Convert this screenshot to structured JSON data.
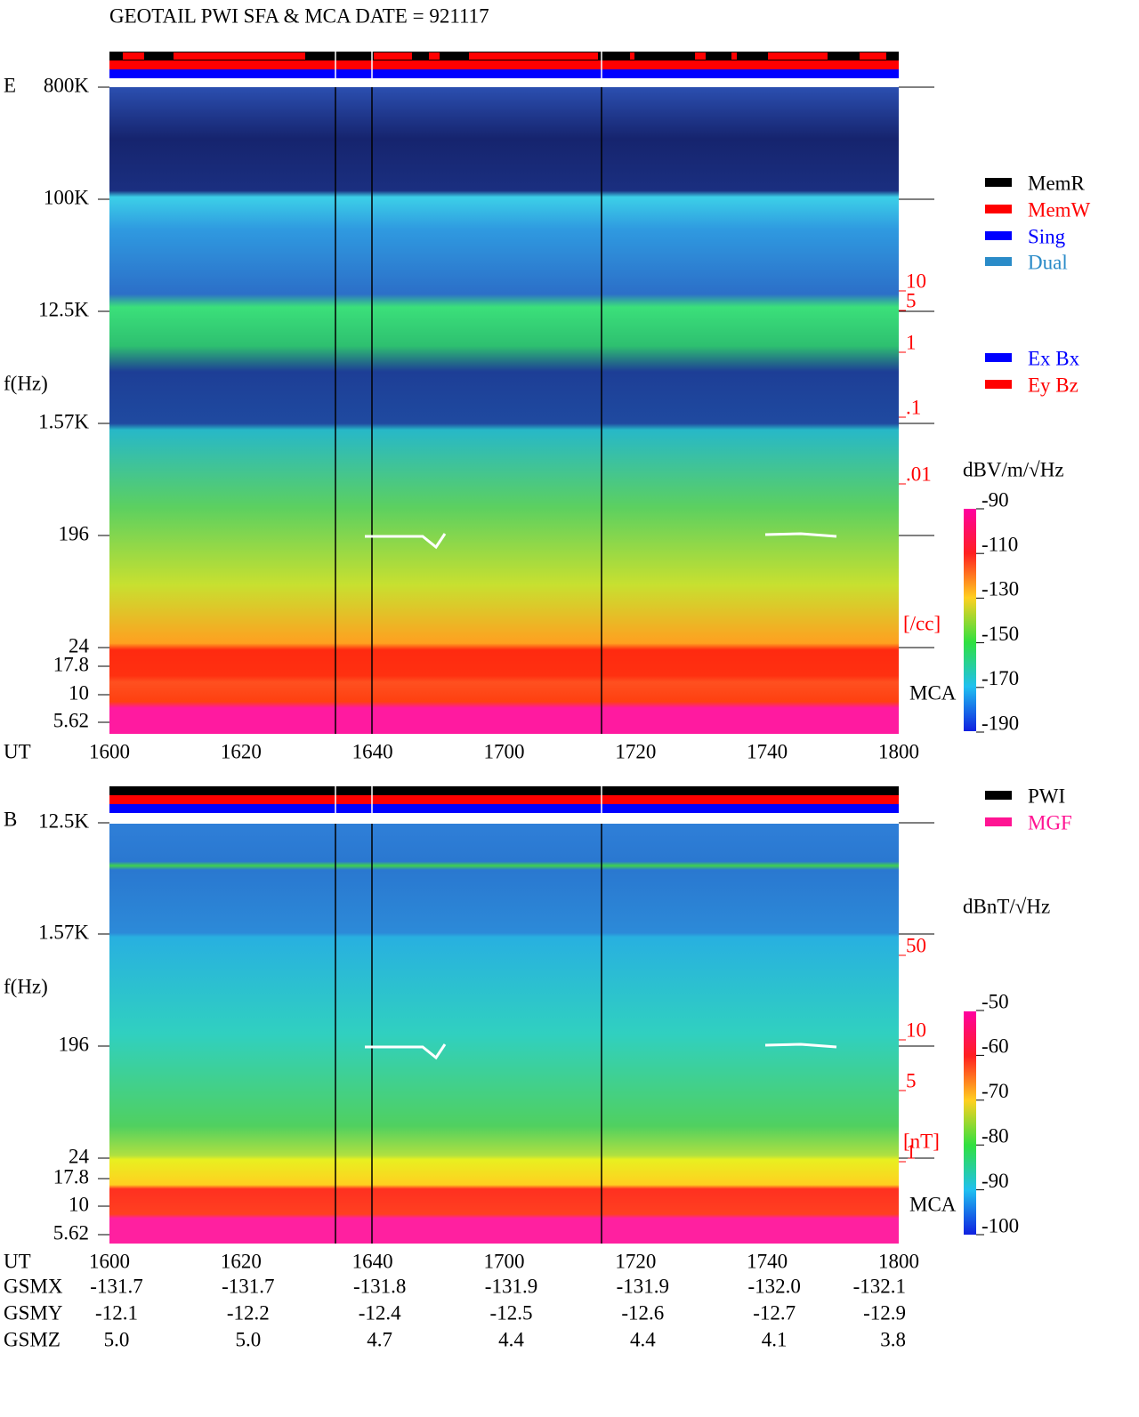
{
  "title": "GEOTAIL  PWI SFA & MCA   DATE = 921117",
  "panels": [
    {
      "component": "E",
      "ylabel": "f(Hz)",
      "yticks": [
        "800K",
        "100K",
        "12.5K",
        "1.57K",
        "196",
        "24",
        "17.8",
        "10",
        "5.62"
      ],
      "right_ticks": [
        "10",
        "5",
        "1",
        ".1",
        ".01"
      ],
      "right_unit": "[/cc]",
      "mca": "MCA",
      "xlabel": "UT",
      "xticks": [
        "1600",
        "1620",
        "1640",
        "1700",
        "1720",
        "1740",
        "1800"
      ],
      "legend": [
        {
          "label": "MemR",
          "color": "#000000"
        },
        {
          "label": "MemW",
          "color": "#ff0000"
        },
        {
          "label": "Sing",
          "color": "#0000ff"
        },
        {
          "label": "Dual",
          "color": "#2a8bc8"
        }
      ],
      "legend2": [
        {
          "label": "Ex Bx",
          "color": "#0000ff"
        },
        {
          "label": "Ey Bz",
          "color": "#ff0000"
        }
      ],
      "colorbar": {
        "unit": "dBV/m/√Hz",
        "ticks": [
          -90,
          -110,
          -130,
          -150,
          -170,
          -190
        ]
      }
    },
    {
      "component": "B",
      "ylabel": "f(Hz)",
      "yticks": [
        "12.5K",
        "1.57K",
        "196",
        "24",
        "17.8",
        "10",
        "5.62"
      ],
      "right_ticks": [
        "50",
        "10",
        "5",
        "1"
      ],
      "right_unit": "[nT]",
      "mca": "MCA",
      "xlabel": "UT",
      "xticks": [
        "1600",
        "1620",
        "1640",
        "1700",
        "1720",
        "1740",
        "1800"
      ],
      "legend": [
        {
          "label": "PWI",
          "color": "#000000"
        },
        {
          "label": "MGF",
          "color": "#ff1493"
        }
      ],
      "colorbar": {
        "unit": "dBnT/√Hz",
        "ticks": [
          -50,
          -60,
          -70,
          -80,
          -90,
          -100
        ]
      }
    }
  ],
  "orbit": {
    "rows": [
      {
        "label": "GSMX",
        "values": [
          "-131.7",
          "-131.7",
          "-131.8",
          "-131.9",
          "-131.9",
          "-132.0",
          "-132.1"
        ]
      },
      {
        "label": "GSMY",
        "values": [
          "-12.1",
          "-12.2",
          "-12.4",
          "-12.5",
          "-12.6",
          "-12.7",
          "-12.9"
        ]
      },
      {
        "label": "GSMZ",
        "values": [
          "5.0",
          "5.0",
          "4.7",
          "4.4",
          "4.4",
          "4.1",
          "3.8"
        ]
      }
    ]
  }
}
